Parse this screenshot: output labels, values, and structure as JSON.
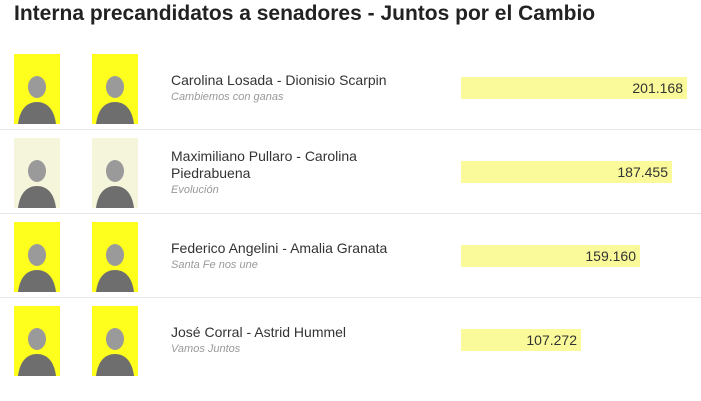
{
  "title": "Interna precandidatos a senadores - Juntos por el Cambio",
  "colors": {
    "bar": "#fafa9a",
    "photo_highlight": "#ffff1e",
    "photo_muted": "#f5f5dc"
  },
  "rows": [
    {
      "pair": "Carolina Losada - Dionisio Scarpin",
      "list": "Cambiemos con ganas",
      "votes": "201.168",
      "share": 1.0,
      "highlight": true
    },
    {
      "pair": "Maximiliano Pullaro - Carolina Piedrabuena",
      "list": "Evolución",
      "votes": "187.455",
      "share": 0.932,
      "highlight": false
    },
    {
      "pair": "Federico Angelini - Amalia Granata",
      "list": "Santa Fe nos une",
      "votes": "159.160",
      "share": 0.791,
      "highlight": true
    },
    {
      "pair": "José Corral - Astrid Hummel",
      "list": "Vamos Juntos",
      "votes": "107.272",
      "share": 0.533,
      "highlight": true
    }
  ]
}
